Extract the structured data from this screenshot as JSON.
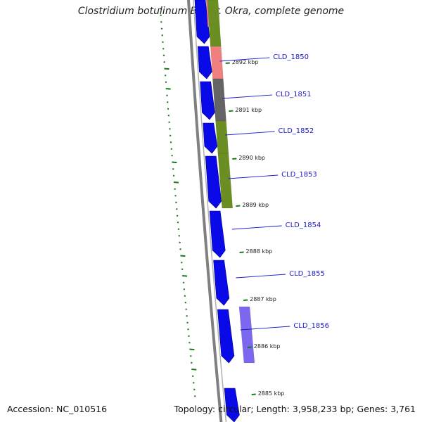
{
  "title": "Clostridium botulinum B1 str. Okra, complete genome",
  "footer": {
    "accession": "Accession: NC_010516",
    "summary": "Topology: circular; Length: 3,958,233 bp; Genes: 3,761"
  },
  "colors": {
    "forward_gene": "#0a0ae8",
    "backbone": "#808080",
    "gc_skew": "#1a7a1a",
    "label": "#1a1acc"
  },
  "genes": [
    {
      "label": "CLD_1850",
      "cog_color": "#6b8e23"
    },
    {
      "label": "CLD_1851",
      "cog_color": "#f08080"
    },
    {
      "label": "CLD_1852",
      "cog_color": "#646464"
    },
    {
      "label": "CLD_1853",
      "cog_color": "#6b8e23"
    },
    {
      "label": "CLD_1854",
      "cog_color": "#6b8e23"
    },
    {
      "label": "CLD_1855",
      "cog_color": ""
    },
    {
      "label": "CLD_1856",
      "cog_color": "#7b68ee"
    }
  ],
  "ticks": [
    "2892 kbp",
    "2891 kbp",
    "2890 kbp",
    "2889 kbp",
    "2888 kbp",
    "2887 kbp",
    "2886 kbp",
    "2885 kbp"
  ]
}
